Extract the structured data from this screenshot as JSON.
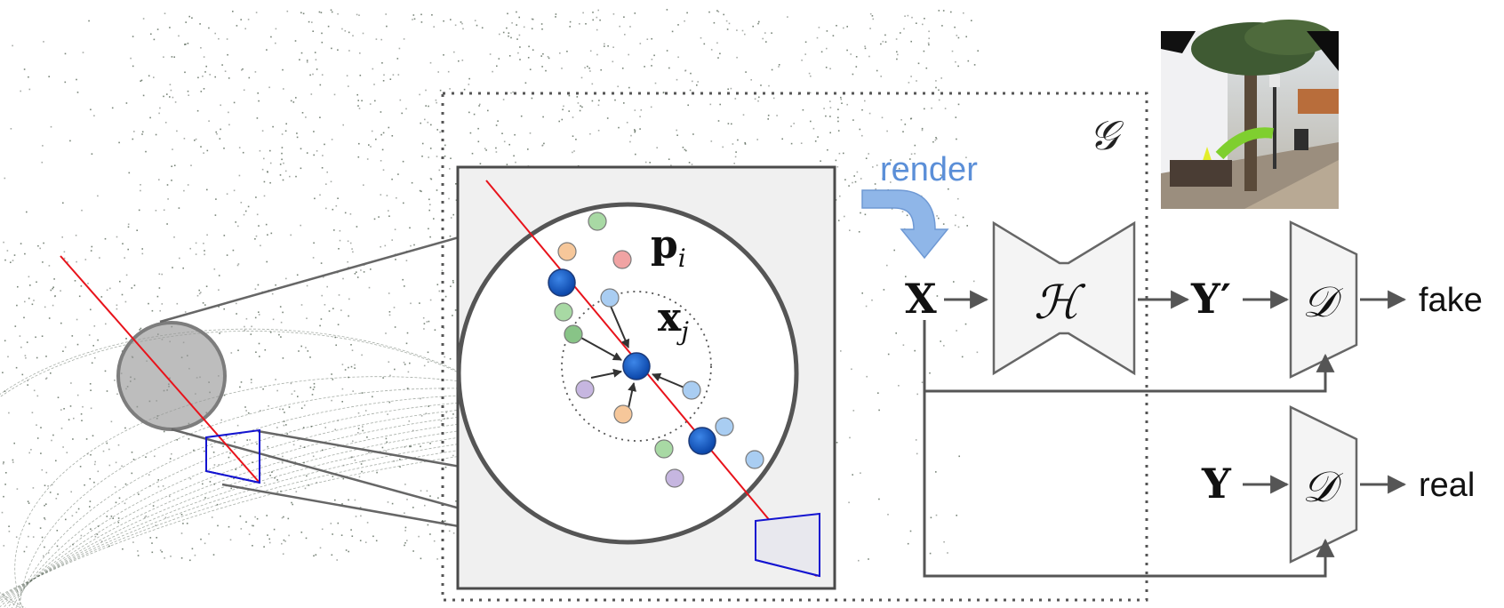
{
  "labels": {
    "generator": "𝒢",
    "render": "render",
    "point_p": "p",
    "point_p_sub": "i",
    "point_x": "x",
    "point_x_sub": "j",
    "input_x": "X",
    "network_h": "ℋ",
    "output_y_prime": "Y′",
    "discriminator_top": "𝒟",
    "discriminator_bottom": "𝒟",
    "real_y": "Y",
    "fake": "fake",
    "real": "real"
  },
  "colors": {
    "ray": "#e8131b",
    "frustum": "#1414d0",
    "render_arrow": "#8fb6e8",
    "render_text": "#5b8fd8",
    "arrows": "#555555",
    "blocks_fill": "#f4f4f4",
    "blocks_stroke": "#666666",
    "zoom_panel_bg": "#f0f0f0",
    "point_dark_blue": "#0b57c9",
    "point_green": "#a8d9a4",
    "point_orange": "#f6c79a",
    "point_red": "#f0a3a3",
    "point_light_blue": "#a9cdf2",
    "point_purple": "#c6b6e0",
    "point_dark_green": "#88c487"
  },
  "images": {
    "background": "lidar point-cloud street scene",
    "thumbnail": "rendered street photograph with tree and hammock"
  }
}
